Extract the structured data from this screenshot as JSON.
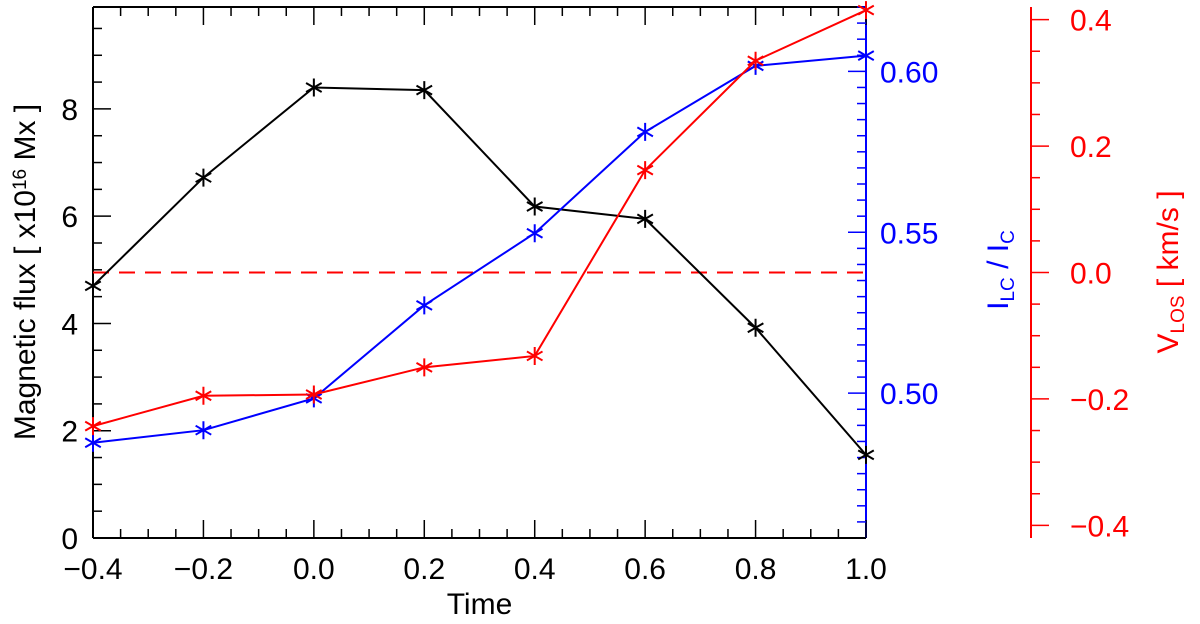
{
  "chart_data": {
    "type": "line",
    "title": "",
    "x": [
      -0.4,
      -0.2,
      0.0,
      0.2,
      0.4,
      0.6,
      0.8,
      1.0
    ],
    "xlabel": "Time",
    "xlim": [
      -0.4,
      1.0
    ],
    "xticks": [
      "−0.4",
      "−0.2",
      "0.0",
      "0.2",
      "0.4",
      "0.6",
      "0.8",
      "1.0"
    ],
    "left_axis": {
      "label_parts": [
        "Magnetic flux [ x10",
        "16",
        " Mx ]"
      ],
      "ylim": [
        0,
        9.9
      ],
      "ticks": [
        "0",
        "2",
        "4",
        "6",
        "8"
      ],
      "color": "#000000"
    },
    "right_axis_1": {
      "label_parts": [
        "I",
        "LC",
        " / I",
        "C"
      ],
      "ylim": [
        0.455,
        0.62
      ],
      "ticks": [
        "0.50",
        "0.55",
        "0.60"
      ],
      "color": "#0000ff"
    },
    "right_axis_2": {
      "label_parts": [
        "V",
        "LOS",
        " [ km/s ]"
      ],
      "ylim": [
        -0.42,
        0.42
      ],
      "ticks": [
        "−0.4",
        "−0.2",
        "0.0",
        "0.2",
        "0.4"
      ],
      "color": "#ff0000"
    },
    "series": [
      {
        "name": "Magnetic flux",
        "axis": "left",
        "color": "#000000",
        "values": [
          4.7,
          6.72,
          8.4,
          8.35,
          6.18,
          5.95,
          3.92,
          1.55
        ]
      },
      {
        "name": "I_LC / I_C",
        "axis": "right_1",
        "color": "#0000ff",
        "values": [
          0.4846,
          0.4885,
          0.4984,
          0.5273,
          0.5497,
          0.5812,
          0.6017,
          0.6049
        ]
      },
      {
        "name": "V_LOS",
        "axis": "right_2",
        "color": "#ff0000",
        "values": [
          -0.243,
          -0.195,
          -0.193,
          -0.15,
          -0.132,
          0.162,
          0.335,
          0.415
        ]
      }
    ],
    "reference_line": {
      "axis": "right_2",
      "value": 0.0,
      "style": "dashed",
      "color": "#ff0000"
    }
  }
}
